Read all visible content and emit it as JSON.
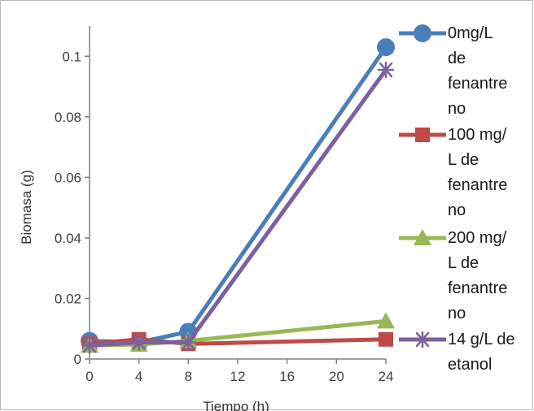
{
  "chart_data": {
    "type": "line",
    "xlabel": "Tiempo (h)",
    "ylabel": "Biomasa (g)",
    "x": [
      0,
      4,
      8,
      24
    ],
    "xticks": [
      0,
      4,
      8,
      12,
      16,
      20,
      24
    ],
    "yticks": [
      "0",
      "0.02",
      "0.04",
      "0.06",
      "0.08",
      "0.1"
    ],
    "xlim": [
      0,
      24
    ],
    "ylim": [
      0,
      0.11
    ],
    "grid": false,
    "legend_position": "right",
    "series": [
      {
        "name": "0mg/L de fenantreno",
        "legend_lines": [
          "0mg/L",
          "de",
          "fenantre",
          "no"
        ],
        "values": [
          0.006,
          0.0055,
          0.009,
          0.103
        ],
        "color": "#4A7EBB",
        "marker": "circle"
      },
      {
        "name": "100 mg/L de fenantreno",
        "legend_lines": [
          "100 mg/",
          "L de",
          "fenantre",
          "no"
        ],
        "values": [
          0.005,
          0.0065,
          0.005,
          0.0065
        ],
        "color": "#BE4B48",
        "marker": "square"
      },
      {
        "name": "200 mg/L de fenantreno",
        "legend_lines": [
          "200 mg/",
          "L de",
          "fenantre",
          "no"
        ],
        "values": [
          0.0045,
          0.0048,
          0.006,
          0.0125
        ],
        "color": "#98B954",
        "marker": "triangle"
      },
      {
        "name": "14 g/L de etanol",
        "legend_lines": [
          "14 g/L de",
          "etanol"
        ],
        "values": [
          0.0045,
          0.0055,
          0.0055,
          0.0955
        ],
        "color": "#7D60A0",
        "marker": "star"
      }
    ]
  }
}
